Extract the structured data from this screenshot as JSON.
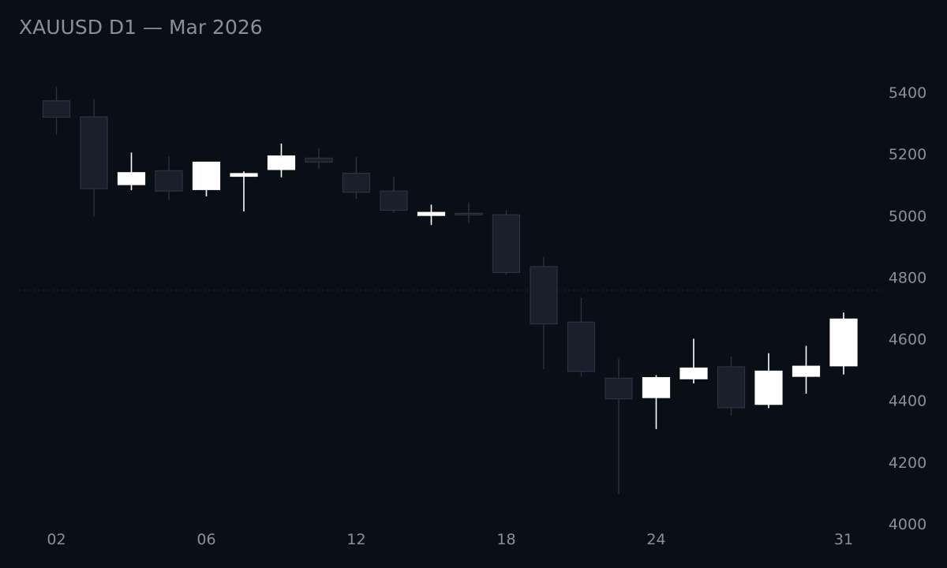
{
  "title": "XAUUSD D1 — Mar 2026",
  "colors": {
    "background": "#0a0e17",
    "text": "#8a8f99",
    "bull_fill": "#ffffff",
    "bear_fill": "#1a1f2b",
    "bear_edge": "#2c3240",
    "reference_line": "#1c2230"
  },
  "chart_data": {
    "type": "candlestick",
    "title": "XAUUSD D1 — Mar 2026",
    "ylim": [
      4000,
      5500
    ],
    "y_ticks": [
      5400,
      5200,
      5000,
      4800,
      4600,
      4400,
      4200,
      4000
    ],
    "x_ticks": [
      {
        "index": 0,
        "label": "02"
      },
      {
        "index": 4,
        "label": "06"
      },
      {
        "index": 8,
        "label": "12"
      },
      {
        "index": 12,
        "label": "18"
      },
      {
        "index": 16,
        "label": "24"
      },
      {
        "index": 21,
        "label": "31"
      }
    ],
    "reference_line": 4760,
    "grid": false,
    "candles": [
      {
        "open": 5375,
        "high": 5420,
        "low": 5265,
        "close": 5322
      },
      {
        "open": 5323,
        "high": 5380,
        "low": 5000,
        "close": 5090
      },
      {
        "open": 5103,
        "high": 5207,
        "low": 5085,
        "close": 5142
      },
      {
        "open": 5148,
        "high": 5195,
        "low": 5053,
        "close": 5082
      },
      {
        "open": 5087,
        "high": 5177,
        "low": 5065,
        "close": 5176
      },
      {
        "open": 5130,
        "high": 5146,
        "low": 5016,
        "close": 5139
      },
      {
        "open": 5152,
        "high": 5236,
        "low": 5127,
        "close": 5196
      },
      {
        "open": 5189,
        "high": 5220,
        "low": 5155,
        "close": 5176
      },
      {
        "open": 5140,
        "high": 5193,
        "low": 5057,
        "close": 5078
      },
      {
        "open": 5082,
        "high": 5128,
        "low": 5012,
        "close": 5020
      },
      {
        "open": 5003,
        "high": 5038,
        "low": 4972,
        "close": 5013
      },
      {
        "open": 5010,
        "high": 5045,
        "low": 4977,
        "close": 5005
      },
      {
        "open": 5005,
        "high": 5020,
        "low": 4810,
        "close": 4818
      },
      {
        "open": 4837,
        "high": 4868,
        "low": 4505,
        "close": 4651
      },
      {
        "open": 4657,
        "high": 4736,
        "low": 4480,
        "close": 4497
      },
      {
        "open": 4475,
        "high": 4538,
        "low": 4100,
        "close": 4408
      },
      {
        "open": 4412,
        "high": 4485,
        "low": 4310,
        "close": 4477
      },
      {
        "open": 4473,
        "high": 4603,
        "low": 4458,
        "close": 4508
      },
      {
        "open": 4512,
        "high": 4545,
        "low": 4354,
        "close": 4379
      },
      {
        "open": 4390,
        "high": 4556,
        "low": 4378,
        "close": 4498
      },
      {
        "open": 4481,
        "high": 4580,
        "low": 4425,
        "close": 4514
      },
      {
        "open": 4515,
        "high": 4688,
        "low": 4487,
        "close": 4667
      }
    ]
  }
}
